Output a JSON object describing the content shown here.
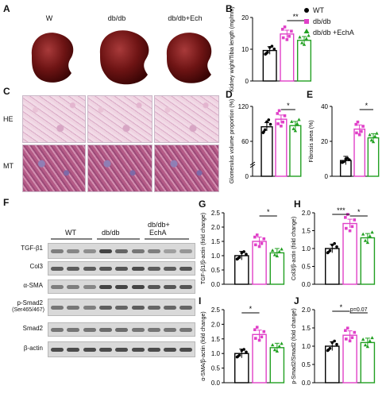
{
  "panels": {
    "A": "A",
    "B": "B",
    "C": "C",
    "D": "D",
    "E": "E",
    "F": "F",
    "G": "G",
    "H": "H",
    "I": "I",
    "J": "J"
  },
  "kidney_labels": [
    "W",
    "db/db",
    "db/db+Ech"
  ],
  "legend": {
    "items": [
      {
        "label": "WT",
        "color": "#000000",
        "marker": "circle"
      },
      {
        "label": "db/db",
        "color": "#e040c8",
        "marker": "square"
      },
      {
        "label": "db/db +EchA",
        "color": "#22a022",
        "marker": "triangle"
      }
    ]
  },
  "histology_rows": [
    "HE",
    "MT"
  ],
  "western": {
    "groups": [
      "WT",
      "db/db",
      "db/db+\nEchA"
    ],
    "group_line1": [
      "WT",
      "db/db",
      "db/db+"
    ],
    "group_line2": [
      "",
      "",
      "EchA"
    ],
    "proteins": [
      "TGF-β1",
      "Col3",
      "α-SMA",
      "p-Smad2",
      "(Ser465/467)",
      "Smad2",
      "β-actin"
    ]
  },
  "colors": {
    "wt": "#000000",
    "db": "#e040c8",
    "echa": "#22a022"
  },
  "chart_data": [
    {
      "id": "B",
      "type": "bar",
      "categories": [
        "WT",
        "db/db",
        "db/db +EchA"
      ],
      "values": [
        9.6,
        14.8,
        12.8
      ],
      "ylabel": "Kidney wight/Tibia length (mg/mm)",
      "ylim": [
        0,
        20
      ],
      "ticks": [
        0,
        10,
        20
      ],
      "sig": [
        {
          "from": 1,
          "to": 2,
          "label": "**"
        }
      ]
    },
    {
      "id": "D",
      "type": "bar",
      "categories": [
        "WT",
        "db/db",
        "db/db +EchA"
      ],
      "values": [
        85,
        98,
        87
      ],
      "ylabel": "Glomerulus volume proportion (%)",
      "ylim": [
        0,
        120
      ],
      "ticks": [
        0,
        60,
        120
      ],
      "axis_break": true,
      "sig": [
        {
          "from": 1,
          "to": 2,
          "label": "*"
        }
      ]
    },
    {
      "id": "E",
      "type": "bar",
      "categories": [
        "WT",
        "db/db",
        "db/db +EchA"
      ],
      "values": [
        9,
        27,
        22
      ],
      "ylabel": "Fibrosis area (%)",
      "ylim": [
        0,
        40
      ],
      "ticks": [
        0,
        20,
        40
      ],
      "sig": [
        {
          "from": 1,
          "to": 2,
          "label": "*"
        }
      ]
    },
    {
      "id": "G",
      "type": "bar",
      "categories": [
        "WT",
        "db/db",
        "db/db +EchA"
      ],
      "values": [
        1.0,
        1.5,
        1.1
      ],
      "ylabel": "TGF-β1/β-actin (fold change)",
      "ylim": [
        0,
        2.5
      ],
      "ticks": [
        0.0,
        0.5,
        1.0,
        1.5,
        2.0,
        2.5
      ],
      "sig": [
        {
          "from": 1,
          "to": 2,
          "label": "*"
        }
      ]
    },
    {
      "id": "H",
      "type": "bar",
      "categories": [
        "WT",
        "db/db",
        "db/db +EchA"
      ],
      "values": [
        1.0,
        1.7,
        1.3
      ],
      "ylabel": "Col3/β-actin (fold change)",
      "ylim": [
        0,
        2.0
      ],
      "ticks": [
        0.0,
        0.5,
        1.0,
        1.5,
        2.0
      ],
      "sig": [
        {
          "from": 0,
          "to": 1,
          "label": "***"
        },
        {
          "from": 1,
          "to": 2,
          "label": "*"
        }
      ]
    },
    {
      "id": "I",
      "type": "bar",
      "categories": [
        "WT",
        "db/db",
        "db/db +EchA"
      ],
      "values": [
        1.0,
        1.65,
        1.2
      ],
      "ylabel": "α-SMA/β-actin (fold change)",
      "ylim": [
        0,
        2.5
      ],
      "ticks": [
        0.0,
        0.5,
        1.0,
        1.5,
        2.0,
        2.5
      ],
      "sig": [
        {
          "from": 0,
          "to": 1,
          "label": "*"
        }
      ]
    },
    {
      "id": "J",
      "type": "bar",
      "categories": [
        "WT",
        "db/db",
        "db/db +EchA"
      ],
      "values": [
        1.0,
        1.3,
        1.1
      ],
      "ylabel": "p-Smad2/Smad2 (fold change)",
      "ylim": [
        0,
        2.0
      ],
      "ticks": [
        0.0,
        0.5,
        1.0,
        1.5,
        2.0
      ],
      "sig": [
        {
          "from": 0,
          "to": 1,
          "label": "*"
        },
        {
          "from": 1,
          "to": 2,
          "label": "p=0.07"
        }
      ]
    }
  ]
}
